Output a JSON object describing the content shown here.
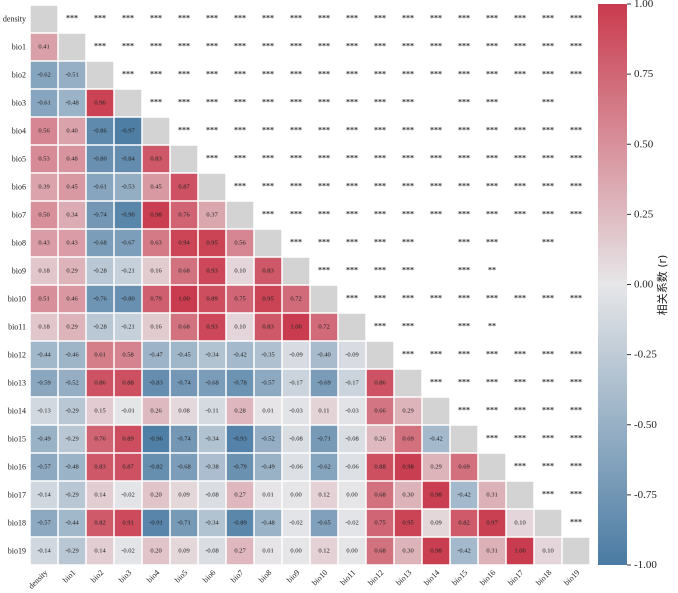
{
  "chart_data": {
    "type": "heatmap",
    "title": "",
    "labels": [
      "density",
      "bio1",
      "bio2",
      "bio3",
      "bio4",
      "bio5",
      "bio6",
      "bio7",
      "bio8",
      "bio9",
      "bio10",
      "bio11",
      "bio12",
      "bio13",
      "bio14",
      "bio15",
      "bio16",
      "bio17",
      "bio18",
      "bio19"
    ],
    "lower_triangle_values": [
      [],
      [
        0.41
      ],
      [
        -0.62,
        -0.51
      ],
      [
        -0.61,
        -0.48,
        0.96
      ],
      [
        0.56,
        0.4,
        -0.86,
        -0.97
      ],
      [
        0.53,
        0.48,
        -0.8,
        -0.84,
        0.83
      ],
      [
        0.39,
        0.45,
        -0.61,
        -0.53,
        0.45,
        0.87
      ],
      [
        0.5,
        0.34,
        -0.74,
        -0.9,
        0.98,
        0.76,
        0.37
      ],
      [
        0.43,
        0.43,
        -0.68,
        -0.67,
        0.63,
        0.94,
        0.95,
        0.56
      ],
      [
        0.18,
        0.29,
        -0.28,
        -0.21,
        0.16,
        0.68,
        0.93,
        0.1,
        0.83
      ],
      [
        0.51,
        0.46,
        -0.76,
        -0.8,
        0.79,
        1.0,
        0.89,
        0.75,
        0.95,
        0.72
      ],
      [
        0.18,
        0.29,
        -0.28,
        -0.21,
        0.16,
        0.68,
        0.93,
        0.1,
        0.83,
        1.0,
        0.72
      ],
      [
        -0.44,
        -0.46,
        0.61,
        0.58,
        -0.47,
        -0.45,
        -0.34,
        -0.42,
        -0.35,
        -0.09,
        -0.4,
        -0.09
      ],
      [
        -0.59,
        -0.52,
        0.86,
        0.88,
        -0.83,
        -0.74,
        -0.68,
        -0.78,
        -0.57,
        -0.17,
        -0.69,
        -0.17,
        0.86
      ],
      [
        -0.13,
        -0.29,
        0.15,
        -0.01,
        0.26,
        0.08,
        -0.11,
        0.28,
        0.01,
        -0.03,
        0.11,
        -0.03,
        0.66,
        0.29
      ],
      [
        -0.49,
        -0.29,
        0.76,
        0.89,
        -0.96,
        -0.74,
        -0.34,
        -0.93,
        -0.52,
        -0.08,
        -0.71,
        -0.08,
        0.26,
        0.69,
        -0.42
      ],
      [
        -0.57,
        -0.48,
        0.83,
        0.87,
        -0.82,
        -0.68,
        -0.38,
        -0.79,
        -0.49,
        -0.06,
        -0.62,
        -0.06,
        0.88,
        0.98,
        0.29,
        0.69
      ],
      [
        -0.14,
        -0.29,
        0.14,
        -0.02,
        0.2,
        0.09,
        -0.08,
        0.27,
        0.01,
        -0.0,
        0.12,
        -0.0,
        0.68,
        0.3,
        0.98,
        -0.42,
        0.31
      ],
      [
        -0.57,
        -0.44,
        0.82,
        0.91,
        -0.91,
        -0.71,
        -0.34,
        -0.89,
        -0.48,
        -0.02,
        -0.65,
        -0.02,
        0.75,
        0.95,
        0.09,
        0.82,
        0.97,
        0.1
      ],
      [
        -0.14,
        -0.29,
        0.14,
        -0.02,
        0.2,
        0.09,
        -0.08,
        0.27,
        0.01,
        -0.0,
        0.12,
        -0.0,
        0.68,
        0.3,
        0.98,
        -0.42,
        0.31,
        1.0,
        0.1
      ]
    ],
    "upper_triangle_significance": [
      [
        "***",
        "***",
        "***",
        "***",
        "***",
        "***",
        "***",
        "***",
        "***",
        "***",
        "***",
        "***",
        "***",
        "***",
        "***",
        "***",
        "***",
        "***",
        "***"
      ],
      [
        "***",
        "***",
        "***",
        "***",
        "***",
        "***",
        "***",
        "***",
        "***",
        "***",
        "***",
        "***",
        "***",
        "***",
        "***",
        "***",
        "***",
        "***"
      ],
      [
        "***",
        "***",
        "***",
        "***",
        "***",
        "***",
        "***",
        "***",
        "***",
        "***",
        "***",
        "***",
        "***",
        "***",
        "***",
        "***",
        "***"
      ],
      [
        "***",
        "***",
        "***",
        "***",
        "***",
        "***",
        "***",
        "***",
        "***",
        "***",
        "",
        "***",
        "***",
        "",
        "***",
        ""
      ],
      [
        "***",
        "***",
        "***",
        "***",
        "***",
        "***",
        "***",
        "***",
        "***",
        "***",
        "***",
        "***",
        "***",
        "***",
        "***"
      ],
      [
        "***",
        "***",
        "***",
        "***",
        "***",
        "***",
        "***",
        "***",
        "***",
        "***",
        "***",
        "***",
        "***",
        "***"
      ],
      [
        "***",
        "***",
        "***",
        "***",
        "***",
        "***",
        "***",
        "***",
        "***",
        "***",
        "***",
        "***",
        "***"
      ],
      [
        "***",
        "***",
        "***",
        "***",
        "***",
        "***",
        "***",
        "***",
        "***",
        "***",
        "***",
        "***"
      ],
      [
        "***",
        "***",
        "***",
        "***",
        "***",
        "",
        "***",
        "***",
        "",
        "***",
        ""
      ],
      [
        "***",
        "***",
        "***",
        "***",
        "",
        "***",
        "**",
        "",
        "",
        ""
      ],
      [
        "***",
        "***",
        "***",
        "***",
        "***",
        "***",
        "***",
        "***",
        "***"
      ],
      [
        "***",
        "***",
        "",
        "***",
        "**",
        "",
        "",
        ""
      ],
      [
        "***",
        "***",
        "***",
        "***",
        "***",
        "***",
        "***"
      ],
      [
        "***",
        "***",
        "***",
        "***",
        "***",
        "***"
      ],
      [
        "***",
        "***",
        "***",
        "***",
        "***"
      ],
      [
        "***",
        "***",
        "***",
        "***"
      ],
      [
        "***",
        "***",
        "***"
      ],
      [
        "***",
        "***"
      ],
      [
        "***"
      ],
      []
    ],
    "colorbar": {
      "label": "相关系数 (r)",
      "range": [
        -1.0,
        1.0
      ],
      "ticks": [
        "1.00",
        "0.75",
        "0.50",
        "0.25",
        "0.00",
        "-0.25",
        "-0.50",
        "-0.75",
        "-1.00"
      ],
      "colors": {
        "high": "#c93b4e",
        "mid": "#e6e6e8",
        "low": "#4a7ba3",
        "diagonal": "#d3d3d3"
      }
    }
  }
}
